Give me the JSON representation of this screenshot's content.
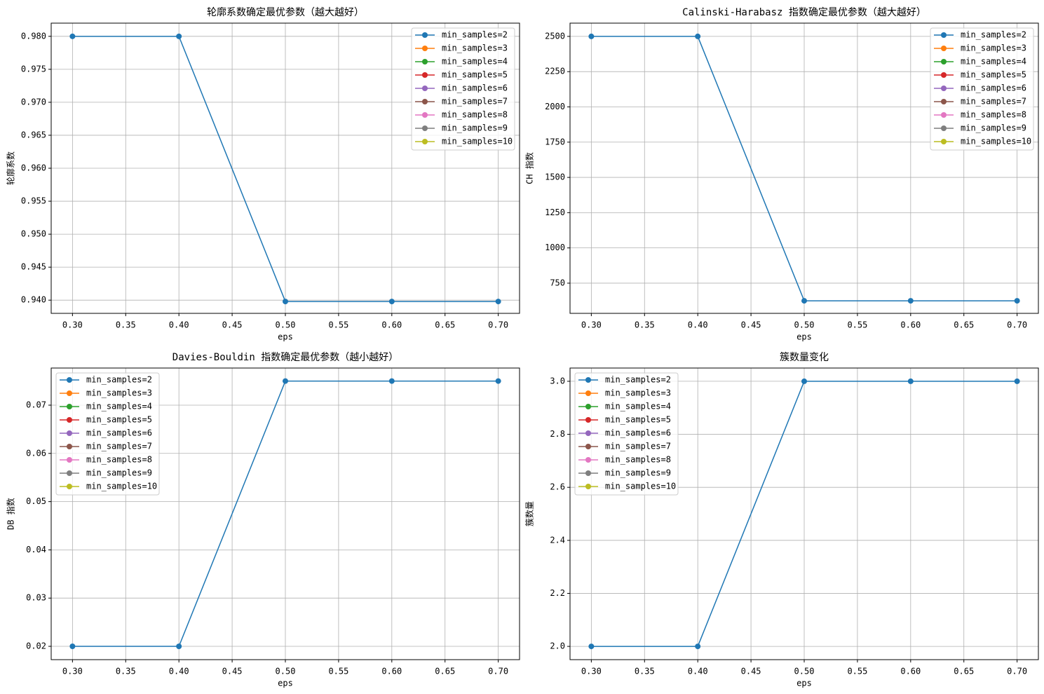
{
  "chart_data": [
    {
      "type": "line",
      "title": "轮廓系数确定最优参数（越大越好）",
      "xlabel": "eps",
      "ylabel": "轮廓系数",
      "x": [
        0.3,
        0.4,
        0.5,
        0.6,
        0.7
      ],
      "series": [
        {
          "name": "min_samples=2",
          "color": "#1f77b4",
          "values": [
            0.98,
            0.98,
            0.9398,
            0.9398,
            0.9398
          ]
        },
        {
          "name": "min_samples=3",
          "color": "#ff7f0e",
          "values": [
            null,
            null,
            null,
            null,
            null
          ]
        },
        {
          "name": "min_samples=4",
          "color": "#2ca02c",
          "values": [
            null,
            null,
            null,
            null,
            null
          ]
        },
        {
          "name": "min_samples=5",
          "color": "#d62728",
          "values": [
            null,
            null,
            null,
            null,
            null
          ]
        },
        {
          "name": "min_samples=6",
          "color": "#9467bd",
          "values": [
            null,
            null,
            null,
            null,
            null
          ]
        },
        {
          "name": "min_samples=7",
          "color": "#8c564b",
          "values": [
            null,
            null,
            null,
            null,
            null
          ]
        },
        {
          "name": "min_samples=8",
          "color": "#e377c2",
          "values": [
            null,
            null,
            null,
            null,
            null
          ]
        },
        {
          "name": "min_samples=9",
          "color": "#7f7f7f",
          "values": [
            null,
            null,
            null,
            null,
            null
          ]
        },
        {
          "name": "min_samples=10",
          "color": "#bcbd22",
          "values": [
            null,
            null,
            null,
            null,
            null
          ]
        }
      ],
      "xlim": [
        0.28,
        0.72
      ],
      "xticks": [
        {
          "value": 0.3,
          "label": "0.30"
        },
        {
          "value": 0.35,
          "label": "0.35"
        },
        {
          "value": 0.4,
          "label": "0.40"
        },
        {
          "value": 0.45,
          "label": "0.45"
        },
        {
          "value": 0.5,
          "label": "0.50"
        },
        {
          "value": 0.55,
          "label": "0.55"
        },
        {
          "value": 0.6,
          "label": "0.60"
        },
        {
          "value": 0.65,
          "label": "0.65"
        },
        {
          "value": 0.7,
          "label": "0.70"
        }
      ],
      "ylim": [
        0.938,
        0.982
      ],
      "yticks": [
        {
          "value": 0.94,
          "label": "0.940"
        },
        {
          "value": 0.945,
          "label": "0.945"
        },
        {
          "value": 0.95,
          "label": "0.950"
        },
        {
          "value": 0.955,
          "label": "0.955"
        },
        {
          "value": 0.96,
          "label": "0.960"
        },
        {
          "value": 0.965,
          "label": "0.965"
        },
        {
          "value": 0.97,
          "label": "0.970"
        },
        {
          "value": 0.975,
          "label": "0.975"
        },
        {
          "value": 0.98,
          "label": "0.980"
        }
      ],
      "grid": true,
      "legend": "upper right"
    },
    {
      "type": "line",
      "title": "Calinski-Harabasz 指数确定最优参数（越大越好）",
      "xlabel": "eps",
      "ylabel": "CH 指数",
      "x": [
        0.3,
        0.4,
        0.5,
        0.6,
        0.7
      ],
      "series": [
        {
          "name": "min_samples=2",
          "color": "#1f77b4",
          "values": [
            2500,
            2500,
            625,
            625,
            625
          ]
        },
        {
          "name": "min_samples=3",
          "color": "#ff7f0e",
          "values": [
            null,
            null,
            null,
            null,
            null
          ]
        },
        {
          "name": "min_samples=4",
          "color": "#2ca02c",
          "values": [
            null,
            null,
            null,
            null,
            null
          ]
        },
        {
          "name": "min_samples=5",
          "color": "#d62728",
          "values": [
            null,
            null,
            null,
            null,
            null
          ]
        },
        {
          "name": "min_samples=6",
          "color": "#9467bd",
          "values": [
            null,
            null,
            null,
            null,
            null
          ]
        },
        {
          "name": "min_samples=7",
          "color": "#8c564b",
          "values": [
            null,
            null,
            null,
            null,
            null
          ]
        },
        {
          "name": "min_samples=8",
          "color": "#e377c2",
          "values": [
            null,
            null,
            null,
            null,
            null
          ]
        },
        {
          "name": "min_samples=9",
          "color": "#7f7f7f",
          "values": [
            null,
            null,
            null,
            null,
            null
          ]
        },
        {
          "name": "min_samples=10",
          "color": "#bcbd22",
          "values": [
            null,
            null,
            null,
            null,
            null
          ]
        }
      ],
      "xlim": [
        0.28,
        0.72
      ],
      "xticks": [
        {
          "value": 0.3,
          "label": "0.30"
        },
        {
          "value": 0.35,
          "label": "0.35"
        },
        {
          "value": 0.4,
          "label": "0.40"
        },
        {
          "value": 0.45,
          "label": "0.45"
        },
        {
          "value": 0.5,
          "label": "0.50"
        },
        {
          "value": 0.55,
          "label": "0.55"
        },
        {
          "value": 0.6,
          "label": "0.60"
        },
        {
          "value": 0.65,
          "label": "0.65"
        },
        {
          "value": 0.7,
          "label": "0.70"
        }
      ],
      "ylim": [
        536,
        2594
      ],
      "yticks": [
        750,
        1000,
        1250,
        1500,
        1750,
        2000,
        2250,
        2500
      ],
      "grid": true,
      "legend": "upper right"
    },
    {
      "type": "line",
      "title": "Davies-Bouldin 指数确定最优参数（越小越好）",
      "xlabel": "eps",
      "ylabel": "DB 指数",
      "x": [
        0.3,
        0.4,
        0.5,
        0.6,
        0.7
      ],
      "series": [
        {
          "name": "min_samples=2",
          "color": "#1f77b4",
          "values": [
            0.02,
            0.02,
            0.075,
            0.075,
            0.075
          ]
        },
        {
          "name": "min_samples=3",
          "color": "#ff7f0e",
          "values": [
            null,
            null,
            null,
            null,
            null
          ]
        },
        {
          "name": "min_samples=4",
          "color": "#2ca02c",
          "values": [
            null,
            null,
            null,
            null,
            null
          ]
        },
        {
          "name": "min_samples=5",
          "color": "#d62728",
          "values": [
            null,
            null,
            null,
            null,
            null
          ]
        },
        {
          "name": "min_samples=6",
          "color": "#9467bd",
          "values": [
            null,
            null,
            null,
            null,
            null
          ]
        },
        {
          "name": "min_samples=7",
          "color": "#8c564b",
          "values": [
            null,
            null,
            null,
            null,
            null
          ]
        },
        {
          "name": "min_samples=8",
          "color": "#e377c2",
          "values": [
            null,
            null,
            null,
            null,
            null
          ]
        },
        {
          "name": "min_samples=9",
          "color": "#7f7f7f",
          "values": [
            null,
            null,
            null,
            null,
            null
          ]
        },
        {
          "name": "min_samples=10",
          "color": "#bcbd22",
          "values": [
            null,
            null,
            null,
            null,
            null
          ]
        }
      ],
      "xlim": [
        0.28,
        0.72
      ],
      "xticks": [
        {
          "value": 0.3,
          "label": "0.30"
        },
        {
          "value": 0.35,
          "label": "0.35"
        },
        {
          "value": 0.4,
          "label": "0.40"
        },
        {
          "value": 0.45,
          "label": "0.45"
        },
        {
          "value": 0.5,
          "label": "0.50"
        },
        {
          "value": 0.55,
          "label": "0.55"
        },
        {
          "value": 0.6,
          "label": "0.60"
        },
        {
          "value": 0.65,
          "label": "0.65"
        },
        {
          "value": 0.7,
          "label": "0.70"
        }
      ],
      "ylim": [
        0.01724,
        0.0777
      ],
      "yticks": [
        0.02,
        0.03,
        0.04,
        0.05,
        0.06,
        0.07
      ],
      "grid": true,
      "legend": "upper left"
    },
    {
      "type": "line",
      "title": "簇数量变化",
      "xlabel": "eps",
      "ylabel": "簇数量",
      "x": [
        0.3,
        0.4,
        0.5,
        0.6,
        0.7
      ],
      "series": [
        {
          "name": "min_samples=2",
          "color": "#1f77b4",
          "values": [
            2,
            2,
            3,
            3,
            3
          ]
        },
        {
          "name": "min_samples=3",
          "color": "#ff7f0e",
          "values": [
            null,
            null,
            null,
            null,
            null
          ]
        },
        {
          "name": "min_samples=4",
          "color": "#2ca02c",
          "values": [
            null,
            null,
            null,
            null,
            null
          ]
        },
        {
          "name": "min_samples=5",
          "color": "#d62728",
          "values": [
            null,
            null,
            null,
            null,
            null
          ]
        },
        {
          "name": "min_samples=6",
          "color": "#9467bd",
          "values": [
            null,
            null,
            null,
            null,
            null
          ]
        },
        {
          "name": "min_samples=7",
          "color": "#8c564b",
          "values": [
            null,
            null,
            null,
            null,
            null
          ]
        },
        {
          "name": "min_samples=8",
          "color": "#e377c2",
          "values": [
            null,
            null,
            null,
            null,
            null
          ]
        },
        {
          "name": "min_samples=9",
          "color": "#7f7f7f",
          "values": [
            null,
            null,
            null,
            null,
            null
          ]
        },
        {
          "name": "min_samples=10",
          "color": "#bcbd22",
          "values": [
            null,
            null,
            null,
            null,
            null
          ]
        }
      ],
      "xlim": [
        0.28,
        0.72
      ],
      "xticks": [
        {
          "value": 0.3,
          "label": "0.30"
        },
        {
          "value": 0.35,
          "label": "0.35"
        },
        {
          "value": 0.4,
          "label": "0.40"
        },
        {
          "value": 0.45,
          "label": "0.45"
        },
        {
          "value": 0.5,
          "label": "0.50"
        },
        {
          "value": 0.55,
          "label": "0.55"
        },
        {
          "value": 0.6,
          "label": "0.60"
        },
        {
          "value": 0.65,
          "label": "0.65"
        },
        {
          "value": 0.7,
          "label": "0.70"
        }
      ],
      "ylim": [
        1.95,
        3.05
      ],
      "yticks": [
        {
          "value": 2,
          "label": "2.0"
        },
        {
          "value": 2.2,
          "label": "2.2"
        },
        {
          "value": 2.4,
          "label": "2.4"
        },
        {
          "value": 2.6,
          "label": "2.6"
        },
        {
          "value": 2.8,
          "label": "2.8"
        },
        {
          "value": 3,
          "label": "3.0"
        }
      ],
      "grid": true,
      "legend": "upper left"
    }
  ]
}
